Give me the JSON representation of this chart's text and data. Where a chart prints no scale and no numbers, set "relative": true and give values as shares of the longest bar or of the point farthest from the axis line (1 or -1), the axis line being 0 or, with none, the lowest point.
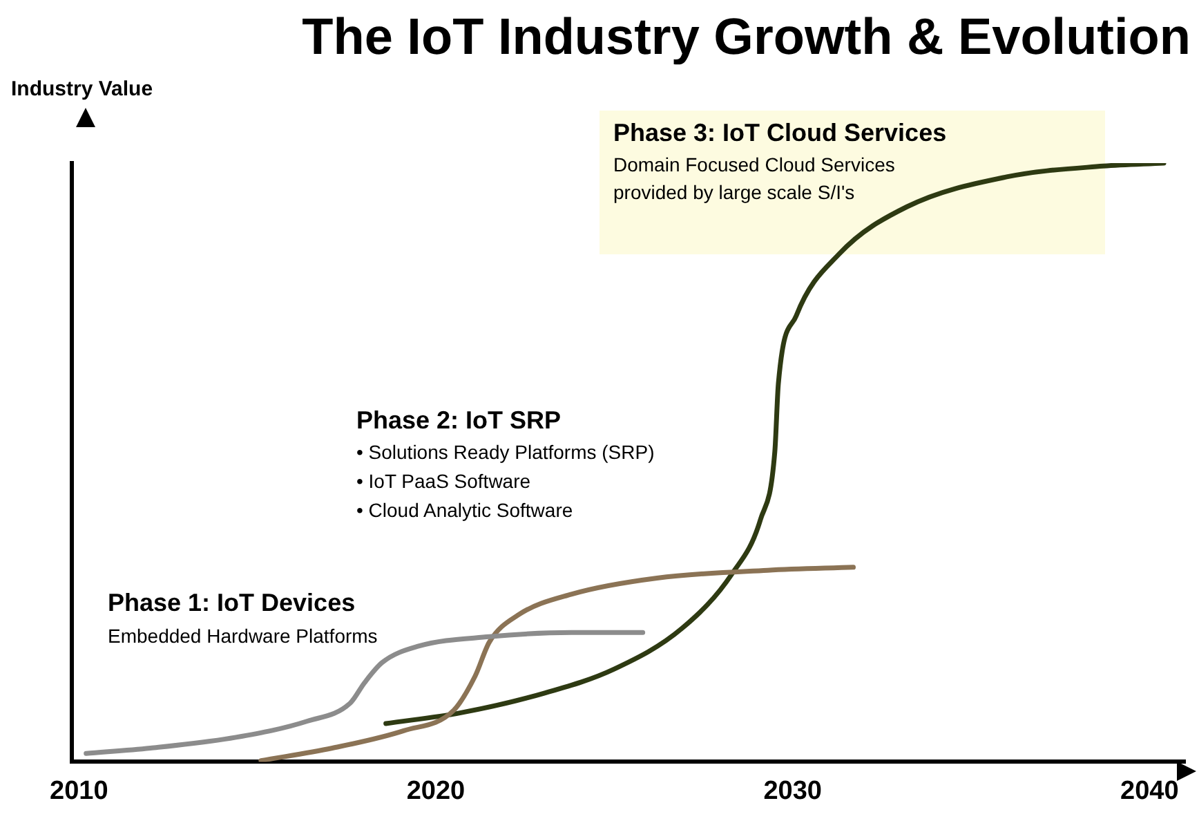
{
  "chart_data": {
    "type": "line",
    "title": "The IoT Industry Growth & Evolution",
    "ylabel": "Industry Value",
    "relative": true,
    "xlim": [
      2009.8,
      2041
    ],
    "xticks": [
      2010,
      2020,
      2030,
      2040
    ],
    "grid": false,
    "legend": false,
    "marker": "none",
    "line_style": "solid",
    "annotations": [
      "Phase 1: IoT Devices",
      "Embedded Hardware Platforms",
      "Phase 2: IoT SRP",
      "• Solutions Ready Platforms (SRP)",
      "• IoT PaaS Software",
      "• Cloud Analytic Software",
      "Phase 3: IoT Cloud Services",
      "Domain Focused Cloud Services",
      "provided by large scale S/I's"
    ],
    "series": [
      {
        "color": "#8c8c8c",
        "x": [
          2010.2,
          2012.0,
          2014.4,
          2016.4,
          2017.6,
          2018.0,
          2018.5,
          2019.5,
          2021.5,
          2023.8,
          2025.8
        ],
        "values": [
          0.014,
          0.023,
          0.041,
          0.068,
          0.098,
          0.132,
          0.166,
          0.193,
          0.209,
          0.216,
          0.216
        ]
      },
      {
        "color": "#8b7355",
        "x": [
          2015.1,
          2017.1,
          2019.1,
          2020.5,
          2021.1,
          2021.5,
          2022.3,
          2023.8,
          2026.2,
          2029.3,
          2031.7
        ],
        "values": [
          0.002,
          0.023,
          0.052,
          0.086,
          0.143,
          0.2,
          0.245,
          0.28,
          0.307,
          0.32,
          0.325
        ]
      },
      {
        "color": "#2e3a12",
        "x": [
          2018.6,
          2020.7,
          2023.0,
          2025.0,
          2026.9,
          2028.3,
          2029.1,
          2029.5,
          2029.6,
          2030.1,
          2031.3,
          2033.2,
          2036.0,
          2038.7,
          2040.4
        ],
        "values": [
          0.064,
          0.082,
          0.114,
          0.155,
          0.223,
          0.314,
          0.405,
          0.518,
          0.632,
          0.745,
          0.848,
          0.927,
          0.977,
          0.995,
          1.0
        ]
      }
    ]
  }
}
